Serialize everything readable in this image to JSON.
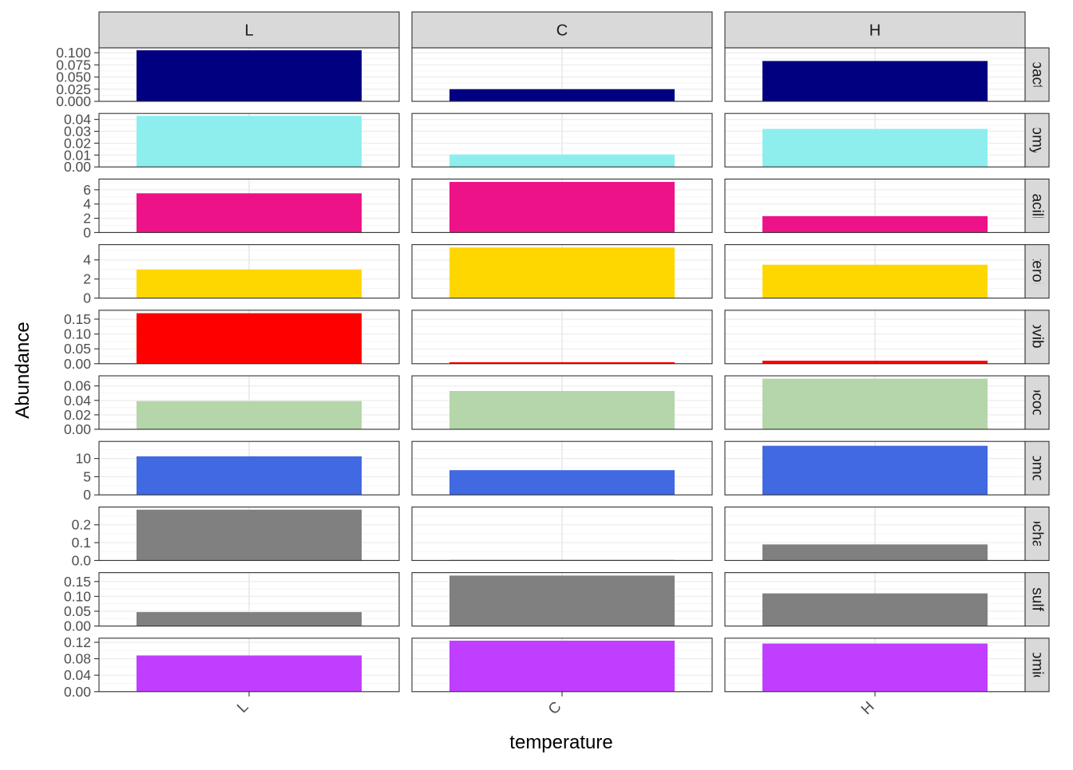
{
  "chart_data": {
    "type": "bar",
    "facet_type": "grid",
    "xlabel": "temperature",
    "ylabel": "Abundance",
    "columns": [
      "L",
      "C",
      "H"
    ],
    "x_tick_labels": [
      "L",
      "C",
      "H"
    ],
    "grid": true,
    "rows": [
      {
        "strip_label": "obacte",
        "color": "#000080",
        "ylim": [
          0,
          0.11
        ],
        "y_ticks": [
          "0.000",
          "0.025",
          "0.050",
          "0.075",
          "0.100"
        ],
        "y_tick_values": [
          0,
          0.025,
          0.05,
          0.075,
          0.1
        ],
        "values": {
          "L": 0.105,
          "C": 0.025,
          "H": 0.083
        }
      },
      {
        "strip_label": "nomyc",
        "color": "#8EEEEE",
        "ylim": [
          0,
          0.045
        ],
        "y_ticks": [
          "0.00",
          "0.01",
          "0.02",
          "0.03",
          "0.04"
        ],
        "y_tick_values": [
          0,
          0.01,
          0.02,
          0.03,
          0.04
        ],
        "values": {
          "L": 0.043,
          "C": 0.0105,
          "H": 0.032
        }
      },
      {
        "strip_label": "Bacillo",
        "color": "#EE1289",
        "ylim": [
          0,
          7.5
        ],
        "y_ticks": [
          "0",
          "2",
          "4",
          "6"
        ],
        "y_tick_values": [
          0,
          2,
          4,
          6
        ],
        "values": {
          "L": 5.5,
          "C": 7.1,
          "H": 2.3
        }
      },
      {
        "strip_label": "cteroid",
        "color": "#FFD700",
        "ylim": [
          0,
          5.6
        ],
        "y_ticks": [
          "0",
          "2",
          "4"
        ],
        "y_tick_values": [
          0,
          2,
          4
        ],
        "values": {
          "L": 3.0,
          "C": 5.3,
          "H": 3.5
        }
      },
      {
        "strip_label": "lovibri",
        "color": "#FF0000",
        "ylim": [
          0,
          0.18
        ],
        "y_ticks": [
          "0.00",
          "0.05",
          "0.10",
          "0.15"
        ],
        "y_tick_values": [
          0,
          0.05,
          0.1,
          0.15
        ],
        "values": {
          "L": 0.17,
          "C": 0.005,
          "H": 0.01
        }
      },
      {
        "strip_label": "lococc",
        "color": "#B4D6AA",
        "ylim": [
          0,
          0.074
        ],
        "y_ticks": [
          "0.00",
          "0.02",
          "0.04",
          "0.06"
        ],
        "y_tick_values": [
          0,
          0.02,
          0.04,
          0.06
        ],
        "values": {
          "L": 0.039,
          "C": 0.053,
          "H": 0.07
        }
      },
      {
        "strip_label": "domon",
        "color": "#4169E1",
        "ylim": [
          0,
          14.7
        ],
        "y_ticks": [
          "0",
          "5",
          "10"
        ],
        "y_tick_values": [
          0,
          5,
          10
        ],
        "values": {
          "L": 10.6,
          "C": 6.8,
          "H": 13.5
        }
      },
      {
        "strip_label": "rochae",
        "color": "#808080",
        "ylim": [
          0,
          0.3
        ],
        "y_ticks": [
          "0.0",
          "0.1",
          "0.2"
        ],
        "y_tick_values": [
          0,
          0.1,
          0.2
        ],
        "values": {
          "L": 0.285,
          "C": 0.003,
          "H": 0.09
        }
      },
      {
        "strip_label": "esulfo",
        "color": "#808080",
        "ylim": [
          0,
          0.18
        ],
        "y_ticks": [
          "0.00",
          "0.05",
          "0.10",
          "0.15"
        ],
        "y_tick_values": [
          0,
          0.05,
          0.1,
          0.15
        ],
        "values": {
          "L": 0.047,
          "C": 0.17,
          "H": 0.11
        }
      },
      {
        "strip_label": "comicr",
        "color": "#BF3EFF",
        "ylim": [
          0,
          0.13
        ],
        "y_ticks": [
          "0.00",
          "0.04",
          "0.08",
          "0.12"
        ],
        "y_tick_values": [
          0,
          0.04,
          0.08,
          0.12
        ],
        "values": {
          "L": 0.088,
          "C": 0.124,
          "H": 0.117
        }
      }
    ]
  }
}
